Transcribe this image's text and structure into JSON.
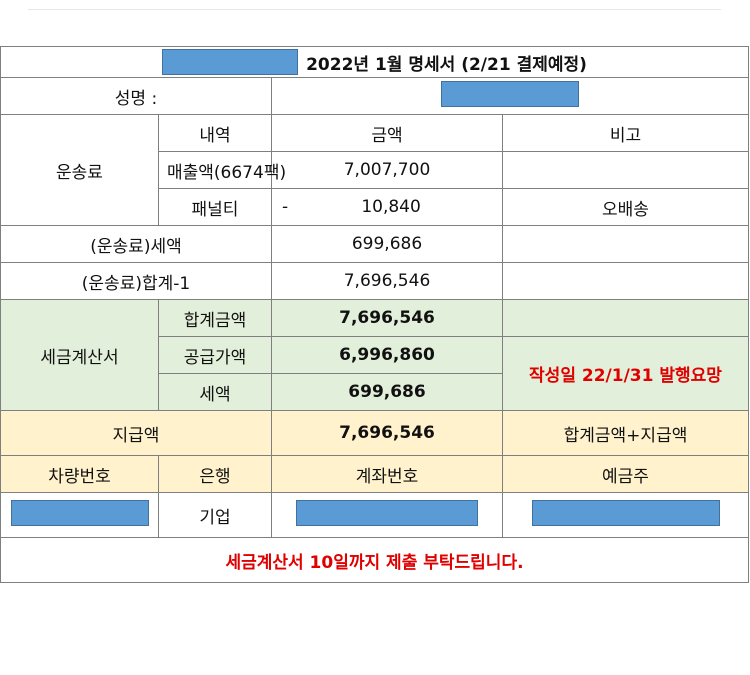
{
  "title": {
    "text": "2022년 1월 명세서 (2/21 결제예정)"
  },
  "name_label": "성명 :",
  "transport": {
    "label": "운송료",
    "header": {
      "item": "내역",
      "amount": "금액",
      "note": "비고"
    },
    "sales": {
      "label": "매출액(6674팩)",
      "amount": "7,007,700"
    },
    "penalty": {
      "label": "패널티",
      "sign": "-",
      "amount": "10,840",
      "note": "오배송"
    },
    "tax": {
      "label": "(운송료)세액",
      "amount": "699,686"
    },
    "total": {
      "label": "(운송료)합계-1",
      "amount": "7,696,546"
    }
  },
  "invoice": {
    "label": "세금계산서",
    "total": {
      "label": "합계금액",
      "amount": "7,696,546"
    },
    "supply": {
      "label": "공급가액",
      "amount": "6,996,860"
    },
    "tax": {
      "label": "세액",
      "amount": "699,686"
    },
    "note": "작성일 22/1/31 발행요망"
  },
  "payment": {
    "label": "지급액",
    "amount": "7,696,546",
    "note": "합계금액+지급액"
  },
  "account": {
    "headers": {
      "vehicle": "차량번호",
      "bank": "은행",
      "account_no": "계좌번호",
      "holder": "예금주"
    },
    "bank": "기업"
  },
  "footer": "세금계산서 10일까지 제출 부탁드립니다.",
  "colors": {
    "green_fill": "#e2efda",
    "yellow_fill": "#fff2cc",
    "alert_red": "#e00000",
    "redaction_blue": "#5b9bd5"
  }
}
